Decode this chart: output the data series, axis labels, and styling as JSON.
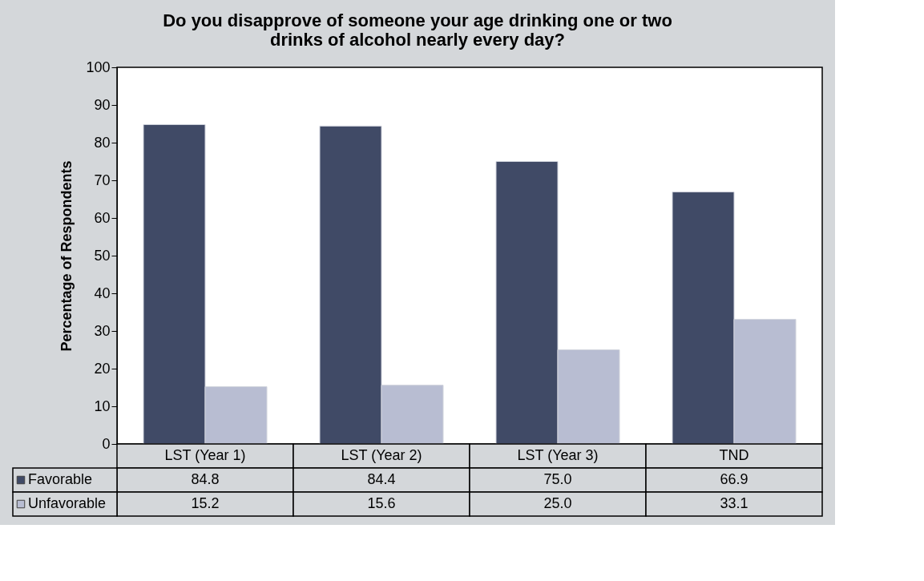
{
  "chart_data": {
    "type": "bar",
    "title": "Do you disapprove of someone your age drinking one or two drinks of alcohol nearly every day?",
    "ylabel": "Percentage of Respondents",
    "categories": [
      "LST (Year 1)",
      "LST (Year 2)",
      "LST (Year 3)",
      "TND"
    ],
    "series": [
      {
        "name": "Favorable",
        "color": "#404a66",
        "values": [
          84.8,
          84.4,
          75.0,
          66.9
        ],
        "value_labels": [
          "84.8",
          "84.4",
          "75.0",
          "66.9"
        ]
      },
      {
        "name": "Unfavorable",
        "color": "#b8bdd2",
        "values": [
          15.2,
          15.6,
          25.0,
          33.1
        ],
        "value_labels": [
          "15.2",
          "15.6",
          "25.0",
          "33.1"
        ]
      }
    ],
    "ylim": [
      0,
      100
    ],
    "yticks": [
      0,
      10,
      20,
      30,
      40,
      50,
      60,
      70,
      80,
      90,
      100
    ],
    "grid": false,
    "legend": "bottom"
  }
}
